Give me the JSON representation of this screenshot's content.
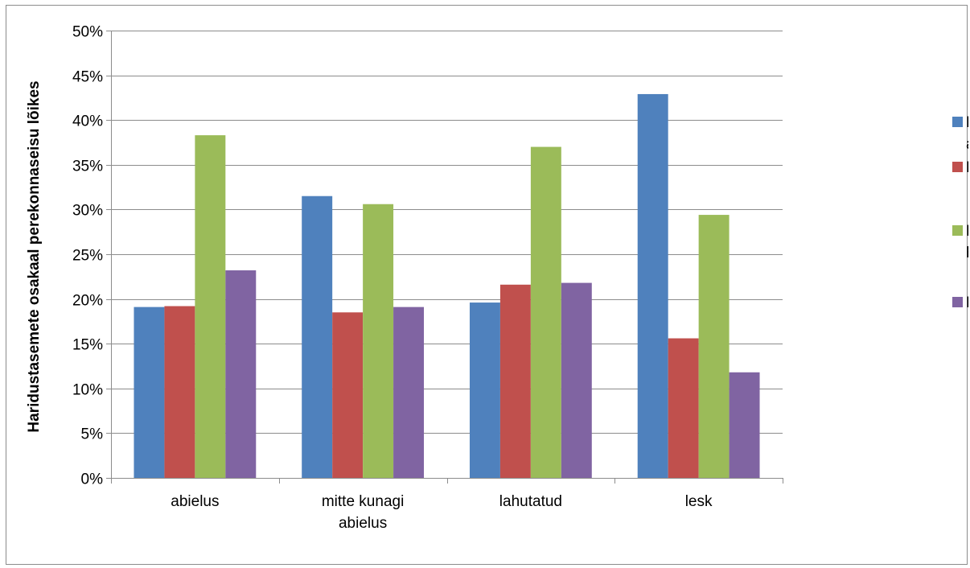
{
  "chart_data": {
    "type": "bar",
    "title": "",
    "xlabel": "",
    "ylabel": "Haridustasemete osakaal perekonnaseisu lõikes",
    "ylim": [
      0,
      50
    ],
    "ytick_step": 5,
    "ytick_labels": [
      "0%",
      "5%",
      "10%",
      "15%",
      "20%",
      "25%",
      "30%",
      "35%",
      "40%",
      "45%",
      "50%"
    ],
    "grid": true,
    "legend_position": "right",
    "categories": [
      [
        "abielus"
      ],
      [
        "mitte kunagi",
        "abielus"
      ],
      [
        "lahutatud"
      ],
      [
        "lesk"
      ]
    ],
    "series": [
      {
        "name": [
          "Põhi-või",
          "algharidus"
        ],
        "color": "#4F81BD",
        "values": [
          19.1,
          31.5,
          19.6,
          42.9
        ]
      },
      {
        "name": [
          "Keskharidus"
        ],
        "color": "#C0504D",
        "values": [
          19.2,
          18.5,
          21.6,
          15.6
        ]
      },
      {
        "name": [
          "Kutsekooli",
          "haridus"
        ],
        "color": "#9BBB59",
        "values": [
          38.3,
          30.6,
          37.0,
          29.4
        ]
      },
      {
        "name": [
          "Kõrgharidus"
        ],
        "color": "#8064A2",
        "values": [
          23.2,
          19.1,
          21.8,
          11.8
        ]
      }
    ]
  }
}
